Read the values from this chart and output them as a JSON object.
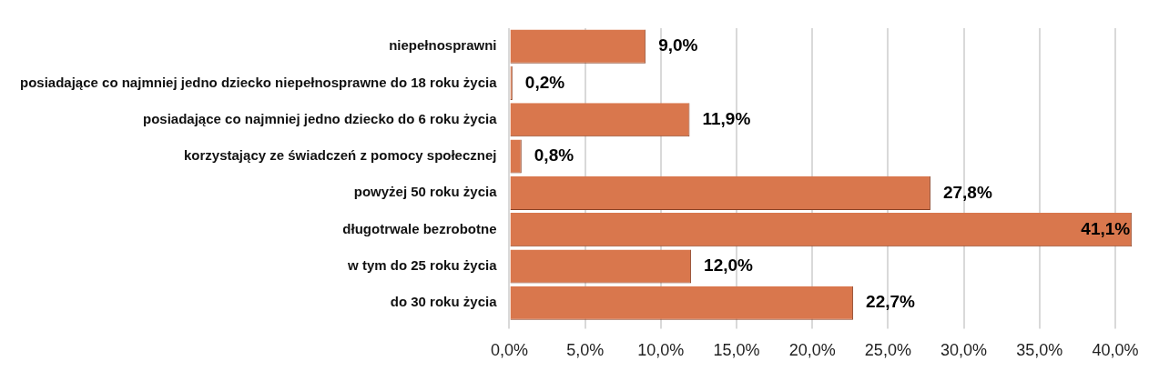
{
  "chart_data": {
    "type": "bar",
    "orientation": "horizontal",
    "categories": [
      "niepełnosprawni",
      "posiadające co najmniej jedno dziecko niepełnosprawne do 18 roku życia",
      "posiadające co najmniej jedno dziecko do 6 roku życia",
      "korzystający ze świadczeń z pomocy społecznej",
      "powyżej 50 roku życia",
      "długotrwale bezrobotne",
      "w tym do 25 roku życia",
      "do 30 roku życia"
    ],
    "values": [
      9.0,
      0.2,
      11.9,
      0.8,
      27.8,
      41.1,
      12.0,
      22.7
    ],
    "value_labels": [
      "9,0%",
      "0,2%",
      "11,9%",
      "0,8%",
      "27,8%",
      "41,1%",
      "12,0%",
      "22,7%"
    ],
    "color": "#d9774d",
    "xlim": [
      0,
      41.2
    ],
    "xticks": [
      {
        "value": 0,
        "label": "0,0%"
      },
      {
        "value": 5,
        "label": "5,0%"
      },
      {
        "value": 10,
        "label": "10,0%"
      },
      {
        "value": 15,
        "label": "15,0%"
      },
      {
        "value": 20,
        "label": "20,0%"
      },
      {
        "value": 25,
        "label": "25,0%"
      },
      {
        "value": 30,
        "label": "30,0%"
      },
      {
        "value": 35,
        "label": "35,0%"
      },
      {
        "value": 40,
        "label": "40,0%"
      }
    ],
    "grid": "x",
    "legend": false
  }
}
